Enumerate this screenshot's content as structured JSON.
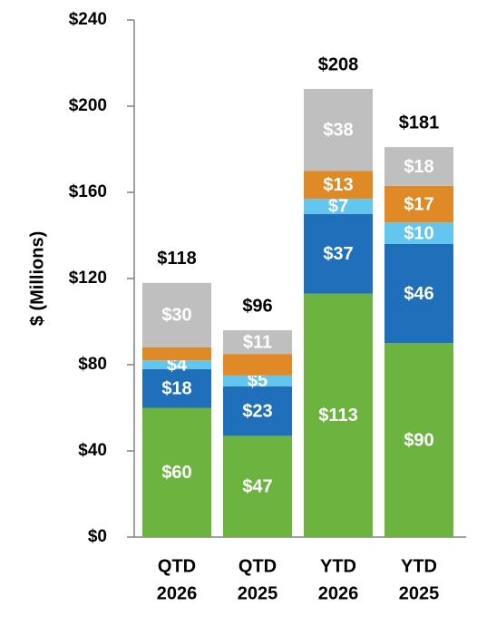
{
  "chart_data": {
    "type": "stacked_bar",
    "y_label": "$ (Millions)",
    "categories": [
      [
        "QTD",
        "2026"
      ],
      [
        "QTD",
        "2025"
      ],
      [
        "YTD",
        "2026"
      ],
      [
        "YTD",
        "2025"
      ]
    ],
    "series": [
      {
        "color": "#6db33f",
        "values": [
          60,
          47,
          113,
          90
        ],
        "value_labels": [
          "$60",
          "$47",
          "$113",
          "$90"
        ]
      },
      {
        "color": "#1f6fba",
        "values": [
          18,
          23,
          37,
          46
        ],
        "value_labels": [
          "$18",
          "$23",
          "$37",
          "$46"
        ]
      },
      {
        "color": "#62c6ef",
        "values": [
          4,
          5,
          7,
          10
        ],
        "value_labels": [
          "$4",
          "$5",
          "$7",
          "$10"
        ]
      },
      {
        "color": "#df8a26",
        "values": [
          6,
          10,
          13,
          17
        ],
        "value_labels": [
          null,
          null,
          "$13",
          "$17"
        ]
      },
      {
        "color": "#bfbfbf",
        "values": [
          30,
          11,
          38,
          18
        ],
        "value_labels": [
          "$30",
          "$11",
          "$38",
          "$18"
        ]
      }
    ],
    "totals": {
      "values": [
        118,
        96,
        208,
        181
      ],
      "value_labels": [
        "$118",
        "$96",
        "$208",
        "$181"
      ]
    },
    "ylim": [
      0,
      240
    ],
    "yticks": [
      {
        "value": 0,
        "label": "$0"
      },
      {
        "value": 40,
        "label": "$40"
      },
      {
        "value": 80,
        "label": "$80"
      },
      {
        "value": 120,
        "label": "$120"
      },
      {
        "value": 160,
        "label": "$160"
      },
      {
        "value": 200,
        "label": "$200"
      },
      {
        "value": 240,
        "label": "$240"
      }
    ]
  }
}
